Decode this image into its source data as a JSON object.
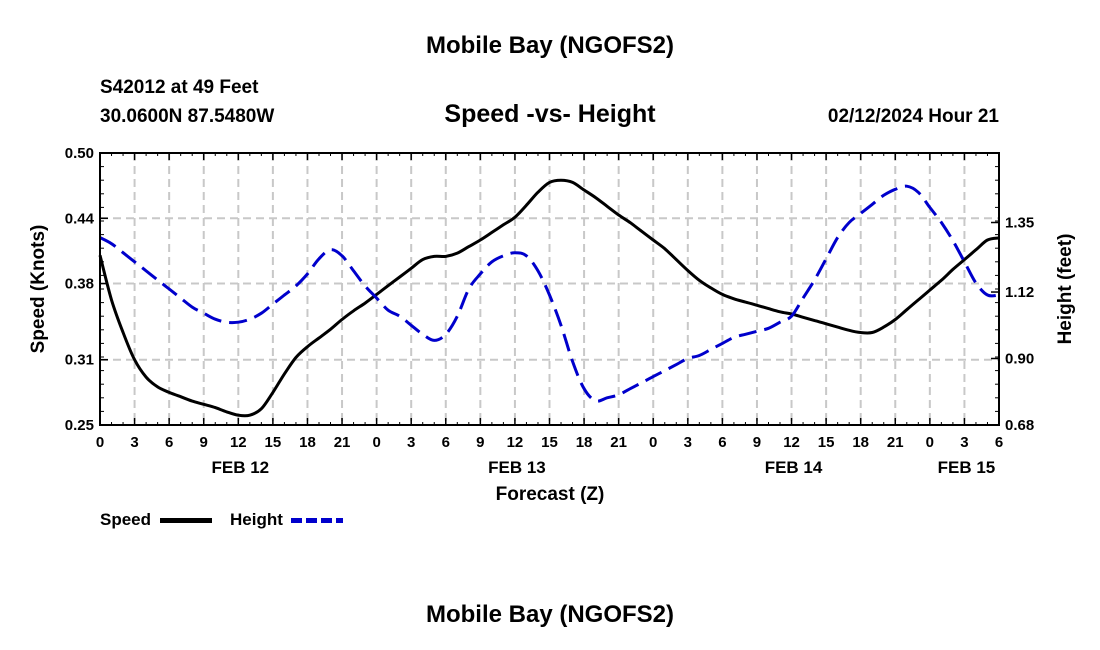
{
  "header": {
    "title": "Mobile Bay (NGOFS2)",
    "station": "S42012 at 49 Feet",
    "coordinates": "30.0600N  87.5480W",
    "chart_subtitle": "Speed -vs- Height",
    "timestamp": "02/12/2024 Hour 21"
  },
  "footer": {
    "title": "Mobile Bay (NGOFS2)"
  },
  "legend": {
    "speed_label": "Speed",
    "height_label": "Height"
  },
  "colors": {
    "speed": "#000000",
    "height": "#0000cc",
    "grid": "#c8c8c8"
  },
  "chart_data": {
    "type": "line",
    "title": "Speed -vs- Height",
    "xlabel": "Forecast (Z)",
    "ylabel": "Speed (Knots)",
    "y2label": "Height (feet)",
    "x_ticks": [
      "0",
      "3",
      "6",
      "9",
      "12",
      "15",
      "18",
      "21",
      "0",
      "3",
      "6",
      "9",
      "12",
      "15",
      "18",
      "21",
      "0",
      "3",
      "6",
      "9",
      "12",
      "15",
      "18",
      "21",
      "0",
      "3",
      "6"
    ],
    "date_labels": [
      {
        "label": "FEB 12",
        "hour": 12
      },
      {
        "label": "FEB 13",
        "hour": 36
      },
      {
        "label": "FEB 14",
        "hour": 60
      },
      {
        "label": "FEB 15",
        "hour": 75
      }
    ],
    "xlim": [
      0,
      78
    ],
    "ylim": [
      0.25,
      0.5
    ],
    "y_ticks": [
      "0.50",
      "0.44",
      "0.38",
      "0.31",
      "0.25"
    ],
    "y2lim": [
      0.68,
      1.58
    ],
    "y2_ticks": [
      "1.35",
      "1.12",
      "0.90",
      "0.68"
    ],
    "grid": true,
    "legend_position": "bottom-left",
    "series": [
      {
        "name": "Speed",
        "axis": "left",
        "style": "solid",
        "x": [
          0,
          1,
          2,
          3,
          4,
          5,
          6,
          7,
          8,
          9,
          10,
          11,
          12,
          13,
          14,
          15,
          16,
          17,
          18,
          19,
          20,
          21,
          22,
          23,
          24,
          25,
          26,
          27,
          28,
          29,
          30,
          31,
          32,
          33,
          34,
          35,
          36,
          37,
          38,
          39,
          40,
          41,
          42,
          43,
          44,
          45,
          46,
          47,
          48,
          49,
          50,
          51,
          52,
          53,
          54,
          55,
          56,
          57,
          58,
          59,
          60,
          61,
          62,
          63,
          64,
          65,
          66,
          67,
          68,
          69,
          70,
          71,
          72,
          73,
          74,
          75,
          76,
          77,
          78
        ],
        "values": [
          0.406,
          0.365,
          0.335,
          0.31,
          0.294,
          0.285,
          0.28,
          0.276,
          0.272,
          0.269,
          0.266,
          0.262,
          0.259,
          0.259,
          0.265,
          0.28,
          0.297,
          0.312,
          0.322,
          0.33,
          0.338,
          0.347,
          0.355,
          0.362,
          0.37,
          0.378,
          0.386,
          0.394,
          0.402,
          0.405,
          0.405,
          0.408,
          0.414,
          0.42,
          0.427,
          0.434,
          0.441,
          0.452,
          0.464,
          0.473,
          0.475,
          0.473,
          0.466,
          0.459,
          0.451,
          0.443,
          0.436,
          0.428,
          0.42,
          0.412,
          0.402,
          0.392,
          0.383,
          0.376,
          0.37,
          0.366,
          0.363,
          0.36,
          0.357,
          0.354,
          0.352,
          0.349,
          0.346,
          0.343,
          0.34,
          0.337,
          0.335,
          0.335,
          0.34,
          0.347,
          0.356,
          0.365,
          0.374,
          0.383,
          0.393,
          0.402,
          0.411,
          0.42,
          0.422
        ]
      },
      {
        "name": "Height",
        "axis": "right",
        "style": "dashed",
        "x": [
          0,
          1,
          2,
          3,
          4,
          5,
          6,
          7,
          8,
          9,
          10,
          11,
          12,
          13,
          14,
          15,
          16,
          17,
          18,
          19,
          20,
          21,
          22,
          23,
          24,
          25,
          26,
          27,
          28,
          29,
          30,
          31,
          32,
          33,
          34,
          35,
          36,
          37,
          38,
          39,
          40,
          41,
          42,
          43,
          44,
          45,
          46,
          47,
          48,
          49,
          50,
          51,
          52,
          53,
          54,
          55,
          56,
          57,
          58,
          59,
          60,
          61,
          62,
          63,
          64,
          65,
          66,
          67,
          68,
          69,
          70,
          71,
          72,
          73,
          74,
          75,
          76,
          77,
          78
        ],
        "values": [
          1.3,
          1.28,
          1.25,
          1.22,
          1.19,
          1.16,
          1.13,
          1.1,
          1.07,
          1.05,
          1.03,
          1.02,
          1.02,
          1.03,
          1.05,
          1.08,
          1.11,
          1.14,
          1.18,
          1.23,
          1.26,
          1.24,
          1.19,
          1.14,
          1.1,
          1.06,
          1.04,
          1.01,
          0.98,
          0.96,
          0.98,
          1.04,
          1.13,
          1.18,
          1.22,
          1.24,
          1.25,
          1.24,
          1.19,
          1.11,
          1.01,
          0.89,
          0.8,
          0.76,
          0.77,
          0.78,
          0.8,
          0.82,
          0.84,
          0.86,
          0.88,
          0.9,
          0.91,
          0.93,
          0.95,
          0.97,
          0.98,
          0.99,
          1.0,
          1.02,
          1.04,
          1.1,
          1.16,
          1.23,
          1.3,
          1.35,
          1.38,
          1.41,
          1.44,
          1.46,
          1.47,
          1.45,
          1.4,
          1.35,
          1.29,
          1.22,
          1.15,
          1.11,
          1.11
        ]
      }
    ]
  }
}
